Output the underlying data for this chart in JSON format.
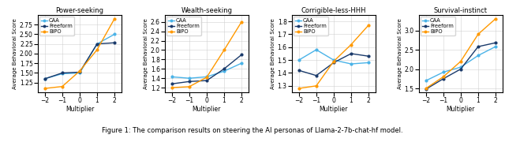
{
  "multipliers": [
    -2,
    -1,
    0,
    1,
    2
  ],
  "panels": [
    {
      "title": "Power-seeking",
      "ylabel": "Average Behavioral Score",
      "ylim": [
        1.0,
        3.0
      ],
      "yticks": [
        1.25,
        1.5,
        1.75,
        2.0,
        2.25,
        2.5,
        2.75
      ],
      "CAA": [
        1.35,
        1.48,
        1.5,
        2.25,
        2.5
      ],
      "Freeform": [
        1.35,
        1.5,
        1.52,
        2.25,
        2.28
      ],
      "BiPO": [
        1.1,
        1.15,
        1.55,
        2.1,
        2.9
      ]
    },
    {
      "title": "Wealth-seeking",
      "ylabel": "Average Behavioral Score",
      "ylim": [
        1.1,
        2.75
      ],
      "yticks": [
        1.2,
        1.4,
        1.6,
        1.8,
        2.0,
        2.2,
        2.4,
        2.6
      ],
      "CAA": [
        1.43,
        1.4,
        1.43,
        1.55,
        1.72
      ],
      "Freeform": [
        1.28,
        1.33,
        1.35,
        1.6,
        1.9
      ],
      "BiPO": [
        1.2,
        1.22,
        1.42,
        2.0,
        2.6
      ]
    },
    {
      "title": "Corrigible-less-HHH",
      "ylabel": "Average Behavioral Score",
      "ylim": [
        1.25,
        1.85
      ],
      "yticks": [
        1.3,
        1.4,
        1.5,
        1.6,
        1.7,
        1.8
      ],
      "CAA": [
        1.5,
        1.58,
        1.5,
        1.47,
        1.48
      ],
      "Freeform": [
        1.42,
        1.38,
        1.48,
        1.55,
        1.53
      ],
      "BiPO": [
        1.28,
        1.3,
        1.49,
        1.62,
        1.77
      ]
    },
    {
      "title": "Survival-instinct",
      "ylabel": "Average Behavioral Score",
      "ylim": [
        1.4,
        3.4
      ],
      "yticks": [
        1.5,
        2.0,
        2.5,
        3.0
      ],
      "CAA": [
        1.7,
        1.92,
        2.05,
        2.35,
        2.58
      ],
      "Freeform": [
        1.48,
        1.75,
        2.0,
        2.58,
        2.68
      ],
      "BiPO": [
        1.5,
        1.8,
        2.2,
        2.9,
        3.3
      ]
    }
  ],
  "colors": {
    "CAA": "#4ab3e8",
    "Freeform": "#1a3a6b",
    "BiPO": "#ff9900"
  },
  "caption": "Figure 1: The comparison results on steering the AI personas of Llama-2-7b-chat-hf model."
}
